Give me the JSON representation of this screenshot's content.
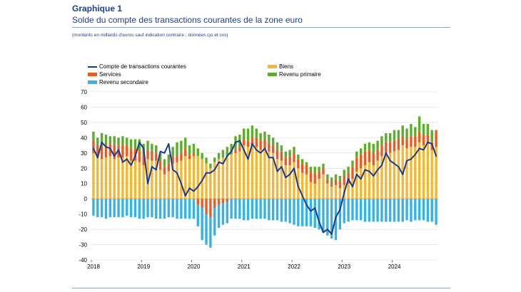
{
  "header": {
    "title": "Graphique 1",
    "subtitle": "Solde du compte des transactions courantes de la zone euro",
    "note": "(montants en milliards d'euros sauf indication contraire ; données cjo et cvs)"
  },
  "colors": {
    "biens": "#f5b731",
    "services": "#ec5a1f",
    "revenu_primaire": "#5cad2c",
    "revenu_secondaire": "#35b3e6",
    "compte": "#1a3a8c",
    "grid": "#d9d9d9",
    "zero": "#a6a6a6"
  },
  "chart_data": {
    "type": "bar",
    "stacked": true,
    "title": "Solde du compte des transactions courantes de la zone euro",
    "xlabel": "",
    "ylabel": "",
    "ylim": [
      -40,
      70
    ],
    "yticks": [
      -40,
      -30,
      -20,
      -10,
      0,
      10,
      20,
      30,
      40,
      50,
      60,
      70
    ],
    "year_labels": [
      "2018",
      "2019",
      "2020",
      "2021",
      "2022",
      "2023",
      "2024"
    ],
    "months_per_year": 12,
    "n_months": 83,
    "series": [
      {
        "name": "Biens",
        "key": "biens",
        "kind": "bar",
        "values": [
          30,
          27,
          26,
          27,
          28,
          26,
          27,
          27,
          28,
          25,
          25,
          24,
          22,
          26,
          25,
          25,
          19,
          16,
          18,
          23,
          24,
          25,
          28,
          26,
          28,
          28,
          26,
          23,
          20,
          24,
          26,
          27,
          28,
          29,
          30,
          31,
          35,
          34,
          35,
          34,
          32,
          33,
          31,
          30,
          26,
          25,
          22,
          22,
          24,
          20,
          17,
          16,
          11,
          10,
          13,
          16,
          10,
          8,
          9,
          7,
          9,
          10,
          13,
          18,
          20,
          22,
          24,
          22,
          25,
          28,
          30,
          30,
          31,
          32,
          35,
          33,
          34,
          34,
          37,
          35,
          36,
          32,
          34
        ]
      },
      {
        "name": "Services",
        "key": "services",
        "kind": "bar",
        "values": [
          8,
          8,
          8,
          8,
          8,
          9,
          8,
          8,
          7,
          8,
          8,
          8,
          7,
          6,
          6,
          5,
          6,
          5,
          5,
          5,
          4,
          5,
          5,
          3,
          2,
          -4,
          -6,
          -10,
          -12,
          -6,
          -4,
          -3,
          -2,
          0,
          2,
          3,
          4,
          4,
          5,
          6,
          6,
          6,
          5,
          5,
          6,
          6,
          5,
          6,
          6,
          6,
          6,
          6,
          7,
          7,
          5,
          4,
          3,
          2,
          4,
          4,
          6,
          7,
          8,
          9,
          9,
          9,
          8,
          8,
          7,
          7,
          7,
          7,
          7,
          7,
          6,
          6,
          7,
          7,
          7,
          7,
          6,
          5,
          11
        ]
      },
      {
        "name": "Revenu primaire",
        "key": "revenu_primaire",
        "kind": "bar",
        "values": [
          6,
          5,
          9,
          7,
          5,
          6,
          5,
          6,
          5,
          6,
          6,
          7,
          7,
          6,
          5,
          5,
          5,
          5,
          6,
          6,
          9,
          8,
          7,
          6,
          6,
          5,
          4,
          4,
          3,
          3,
          4,
          5,
          6,
          7,
          9,
          8,
          7,
          8,
          8,
          6,
          5,
          5,
          6,
          5,
          5,
          4,
          4,
          4,
          4,
          3,
          3,
          2,
          3,
          4,
          3,
          3,
          3,
          4,
          3,
          4,
          4,
          4,
          4,
          4,
          4,
          5,
          5,
          6,
          6,
          6,
          6,
          6,
          7,
          6,
          7,
          7,
          8,
          6,
          10,
          7,
          7,
          8,
          0
        ]
      },
      {
        "name": "Revenu secondaire",
        "key": "revenu_secondaire",
        "kind": "bar",
        "values": [
          -11,
          -12,
          -12,
          -13,
          -12,
          -12,
          -12,
          -12,
          -11,
          -12,
          -12,
          -13,
          -13,
          -12,
          -12,
          -13,
          -13,
          -13,
          -12,
          -12,
          -13,
          -13,
          -13,
          -13,
          -13,
          -14,
          -21,
          -20,
          -20,
          -18,
          -15,
          -14,
          -14,
          -13,
          -13,
          -13,
          -14,
          -14,
          -13,
          -13,
          -13,
          -13,
          -14,
          -14,
          -14,
          -15,
          -15,
          -16,
          -17,
          -18,
          -18,
          -18,
          -18,
          -19,
          -20,
          -22,
          -24,
          -26,
          -27,
          -20,
          -16,
          -15,
          -14,
          -14,
          -14,
          -15,
          -15,
          -15,
          -15,
          -15,
          -15,
          -15,
          -15,
          -15,
          -15,
          -14,
          -15,
          -14,
          -14,
          -14,
          -15,
          -15,
          -17
        ]
      },
      {
        "name": "Compte de transactions courantes",
        "key": "compte",
        "kind": "line",
        "values": [
          33,
          27,
          37,
          34,
          33,
          28,
          32,
          24,
          26,
          22,
          28,
          37,
          33,
          10,
          21,
          19,
          31,
          30,
          36,
          19,
          17,
          10,
          2,
          7,
          5,
          8,
          12,
          17,
          17,
          19,
          24,
          23,
          28,
          31,
          37,
          38,
          32,
          26,
          36,
          32,
          30,
          33,
          27,
          27,
          18,
          21,
          14,
          16,
          20,
          8,
          2,
          -4,
          -8,
          -6,
          -15,
          -22,
          -20,
          -23,
          -12,
          -7,
          4,
          13,
          8,
          16,
          13,
          19,
          18,
          15,
          19,
          22,
          30,
          25,
          23,
          21,
          16,
          25,
          26,
          29,
          33,
          32,
          37,
          36,
          28
        ]
      }
    ]
  },
  "legend": [
    {
      "key": "compte",
      "label": "Compte de transactions courantes"
    },
    {
      "key": "services",
      "label": "Services"
    },
    {
      "key": "revenu_secondaire",
      "label": "Revenu secondaire"
    },
    {
      "key": "biens",
      "label": "Biens"
    },
    {
      "key": "revenu_primaire",
      "label": "Revenu primaire"
    }
  ]
}
